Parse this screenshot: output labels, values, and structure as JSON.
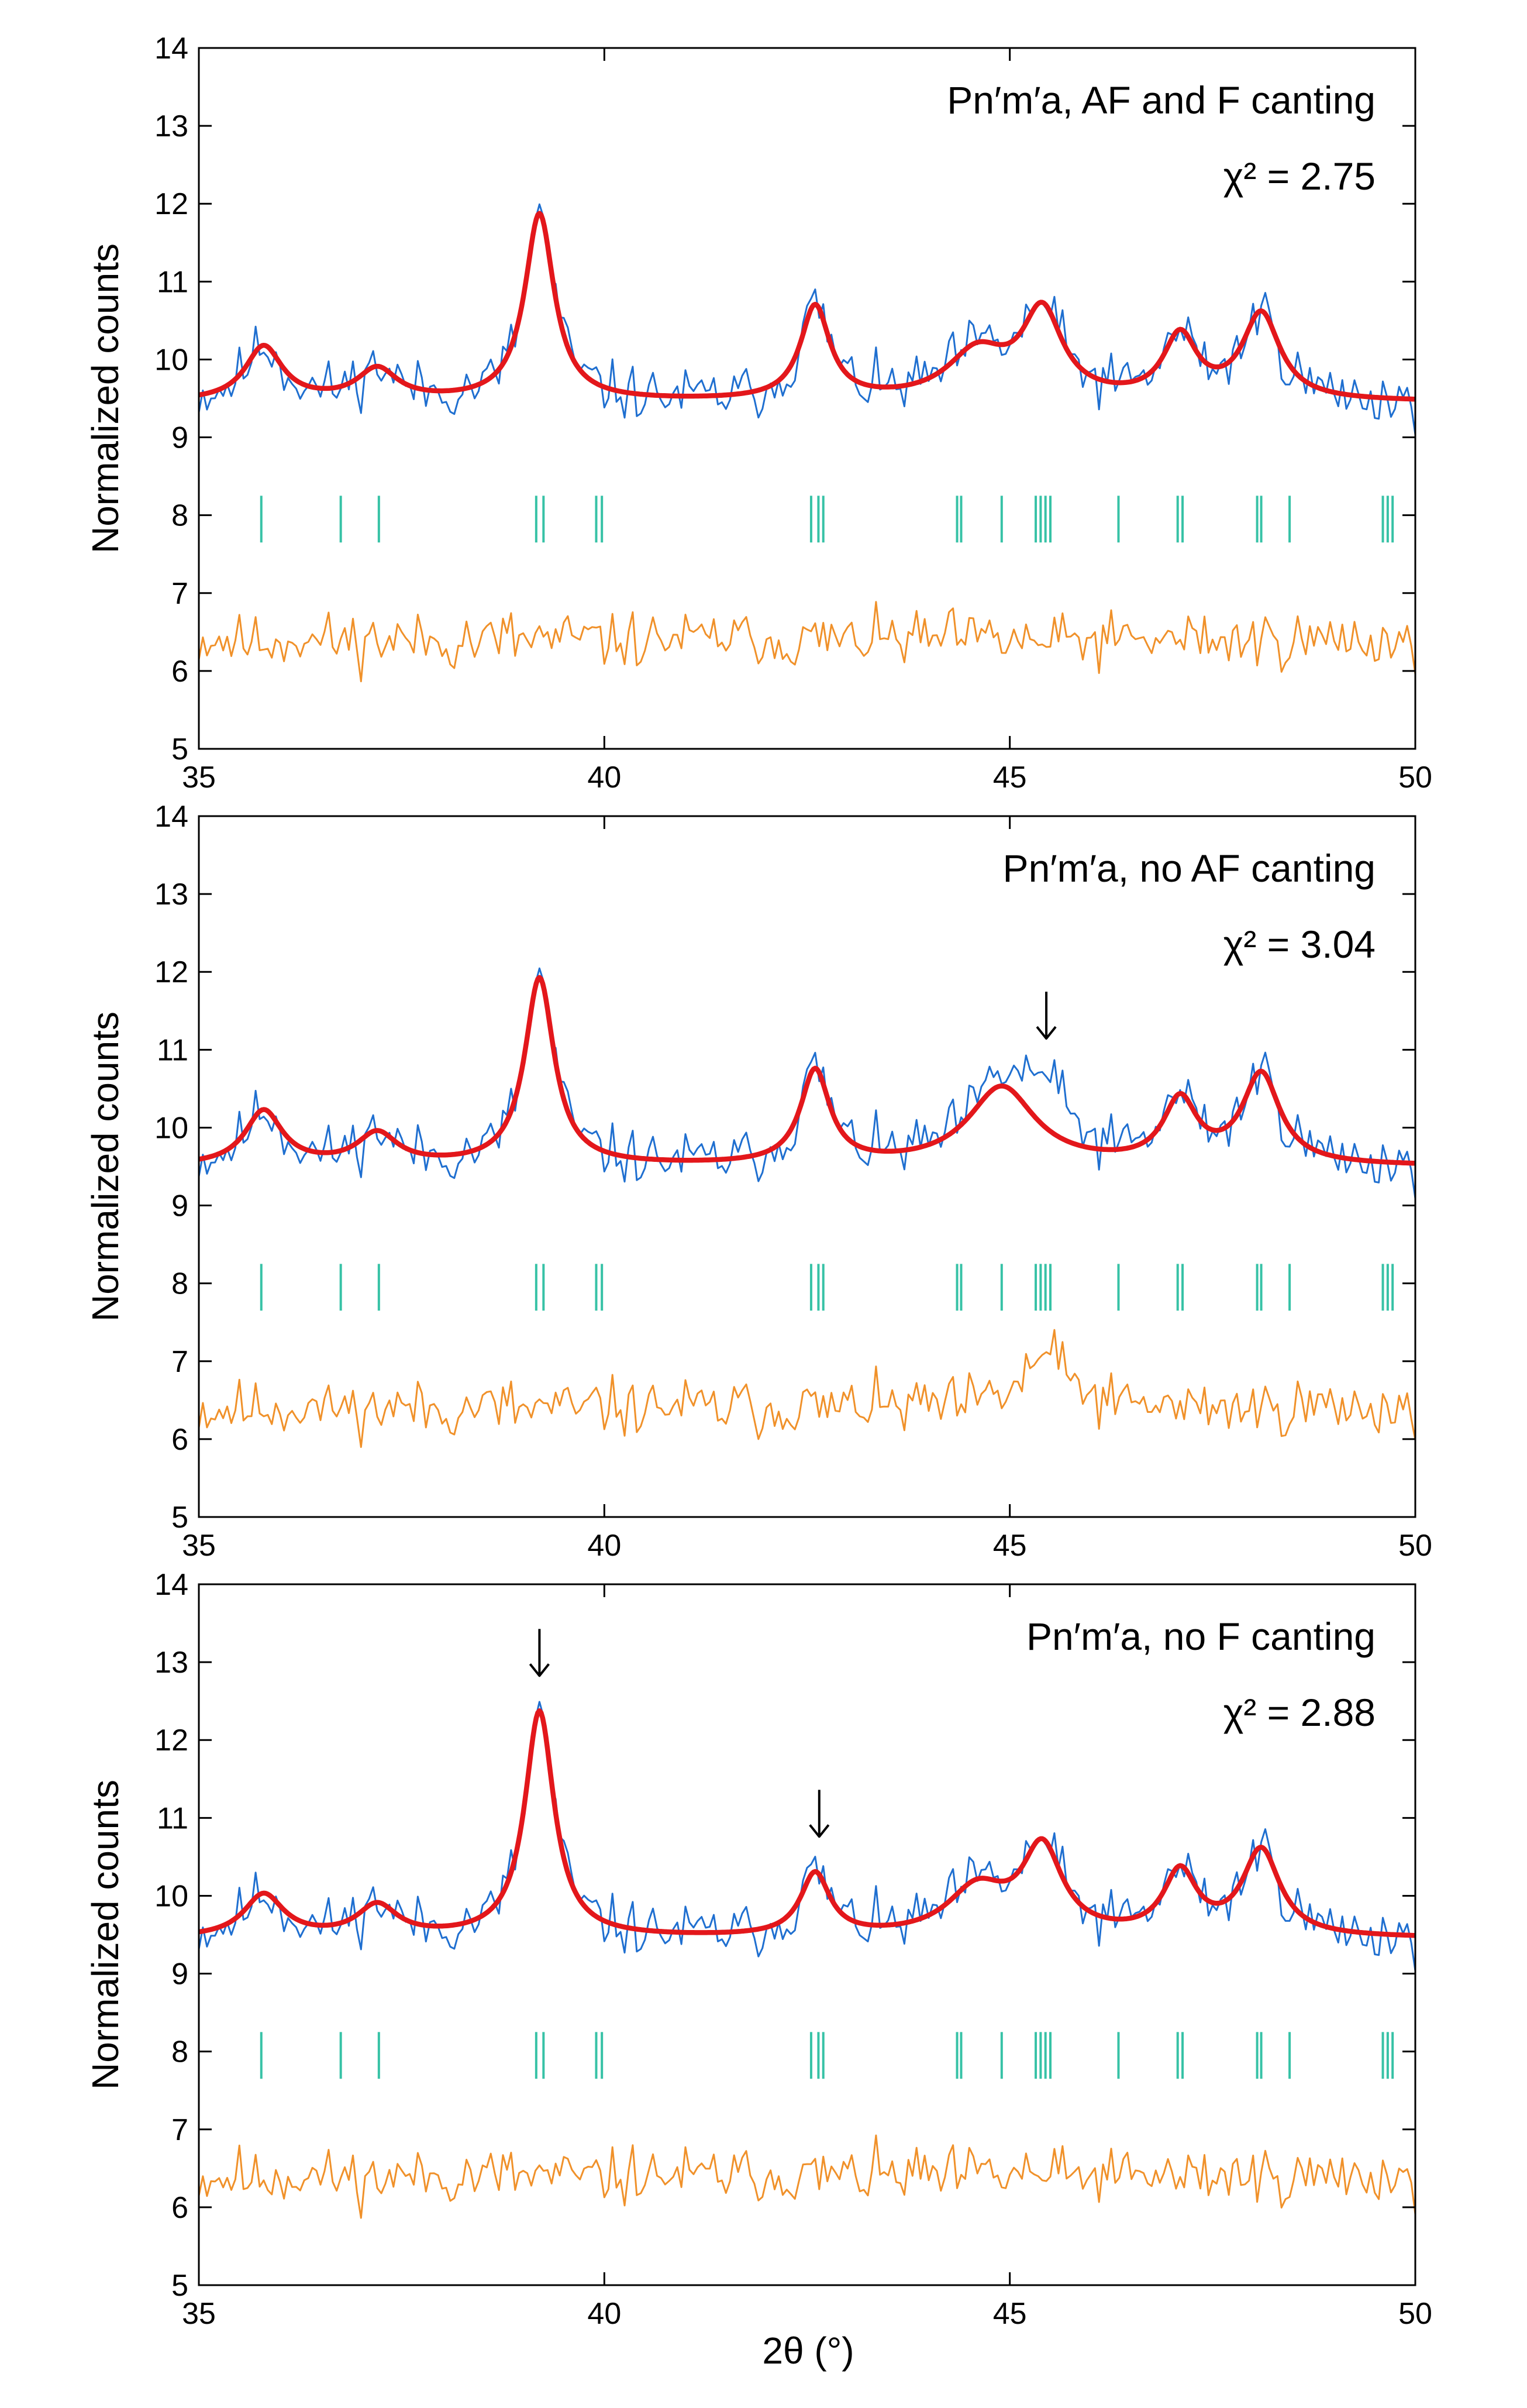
{
  "figure": {
    "x_axis_label": "2θ (°)",
    "y_axis_label": "Normalized counts"
  },
  "chart_data": [
    {
      "type": "line",
      "title": "Pn′m′a, AF and F canting",
      "chi_squared_label": "χ² = 2.75",
      "xlabel": "2θ (°)",
      "ylabel": "Normalized counts",
      "xlim": [
        35,
        50
      ],
      "ylim": [
        5,
        14
      ],
      "x_ticks": [
        "35",
        "40",
        "45",
        "50"
      ],
      "y_ticks": [
        "5",
        "6",
        "7",
        "8",
        "9",
        "10",
        "11",
        "12",
        "13",
        "14"
      ],
      "arrows_at": [],
      "peak_fit": {
        "baseline": 9.45,
        "peaks": [
          [
            35.8,
            0.7,
            0.28
          ],
          [
            37.2,
            0.4,
            0.3
          ],
          [
            39.2,
            2.4,
            0.22
          ],
          [
            42.6,
            1.2,
            0.22
          ],
          [
            44.6,
            0.6,
            0.45
          ],
          [
            45.4,
            1.1,
            0.3
          ],
          [
            47.1,
            0.8,
            0.25
          ],
          [
            48.1,
            1.1,
            0.28
          ]
        ]
      },
      "reflection_positions": [
        35.77,
        36.75,
        37.22,
        39.16,
        39.25,
        39.9,
        39.97,
        42.55,
        42.64,
        42.7,
        44.35,
        44.4,
        44.9,
        45.32,
        45.38,
        45.44,
        45.5,
        46.34,
        47.07,
        47.13,
        48.05,
        48.1,
        48.45,
        49.6,
        49.66,
        49.72
      ],
      "series": [
        {
          "name": "Observed",
          "color": "#1f6fd0",
          "noise": 0.22,
          "seed": 11
        },
        {
          "name": "Calculated",
          "color": "#e3171b"
        },
        {
          "name": "Bragg positions",
          "color": "#37c2a6",
          "y_range": [
            7.65,
            8.25
          ]
        },
        {
          "name": "Difference",
          "color": "#f0912a",
          "offset": 6.4,
          "seed": 23
        }
      ]
    },
    {
      "type": "line",
      "title": "Pn′m′a, no AF canting",
      "chi_squared_label": "χ² = 3.04",
      "xlabel": "2θ (°)",
      "ylabel": "Normalized counts",
      "xlim": [
        35,
        50
      ],
      "ylim": [
        5,
        14
      ],
      "x_ticks": [
        "35",
        "40",
        "45",
        "50"
      ],
      "y_ticks": [
        "5",
        "6",
        "7",
        "8",
        "9",
        "10",
        "11",
        "12",
        "13",
        "14"
      ],
      "arrows_at": [
        45.45
      ],
      "peak_fit": {
        "baseline": 9.5,
        "peaks": [
          [
            35.8,
            0.7,
            0.28
          ],
          [
            37.2,
            0.4,
            0.3
          ],
          [
            39.2,
            2.4,
            0.22
          ],
          [
            42.6,
            1.2,
            0.22
          ],
          [
            44.9,
            1.0,
            0.5
          ],
          [
            47.1,
            0.8,
            0.25
          ],
          [
            48.1,
            1.15,
            0.28
          ]
        ]
      },
      "observed_extra_peaks": [
        [
          45.45,
          0.7,
          0.3
        ]
      ],
      "reflection_positions": [
        35.77,
        36.75,
        37.22,
        39.16,
        39.25,
        39.9,
        39.97,
        42.55,
        42.64,
        42.7,
        44.35,
        44.4,
        44.9,
        45.32,
        45.38,
        45.44,
        45.5,
        46.34,
        47.07,
        47.13,
        48.05,
        48.1,
        48.45,
        49.6,
        49.66,
        49.72
      ],
      "series": [
        {
          "name": "Observed",
          "color": "#1f6fd0",
          "noise": 0.22,
          "seed": 11
        },
        {
          "name": "Calculated",
          "color": "#e3171b"
        },
        {
          "name": "Bragg positions",
          "color": "#37c2a6",
          "y_range": [
            7.65,
            8.25
          ]
        },
        {
          "name": "Difference",
          "color": "#f0912a",
          "offset": 6.4,
          "seed": 37
        }
      ]
    },
    {
      "type": "line",
      "title": "Pn′m′a, no F canting",
      "chi_squared_label": "χ² = 2.88",
      "xlabel": "2θ (°)",
      "ylabel": "Normalized counts",
      "xlim": [
        35,
        50
      ],
      "ylim": [
        5,
        14
      ],
      "x_ticks": [
        "35",
        "40",
        "45",
        "50"
      ],
      "y_ticks": [
        "5",
        "6",
        "7",
        "8",
        "9",
        "10",
        "11",
        "12",
        "13",
        "14"
      ],
      "arrows_at": [
        39.2,
        42.65
      ],
      "peak_fit": {
        "baseline": 9.45,
        "peaks": [
          [
            35.8,
            0.55,
            0.3
          ],
          [
            37.2,
            0.4,
            0.3
          ],
          [
            39.2,
            2.9,
            0.22
          ],
          [
            42.6,
            0.8,
            0.22
          ],
          [
            44.6,
            0.6,
            0.45
          ],
          [
            45.4,
            1.1,
            0.3
          ],
          [
            47.1,
            0.8,
            0.25
          ],
          [
            48.1,
            1.1,
            0.28
          ]
        ]
      },
      "reflection_positions": [
        35.77,
        36.75,
        37.22,
        39.16,
        39.25,
        39.9,
        39.97,
        42.55,
        42.64,
        42.7,
        44.35,
        44.4,
        44.9,
        45.32,
        45.38,
        45.44,
        45.5,
        46.34,
        47.07,
        47.13,
        48.05,
        48.1,
        48.45,
        49.6,
        49.66,
        49.72
      ],
      "series": [
        {
          "name": "Observed",
          "color": "#1f6fd0",
          "noise": 0.22,
          "seed": 11
        },
        {
          "name": "Calculated",
          "color": "#e3171b"
        },
        {
          "name": "Bragg positions",
          "color": "#37c2a6",
          "y_range": [
            7.65,
            8.25
          ]
        },
        {
          "name": "Difference",
          "color": "#f0912a",
          "offset": 6.4,
          "seed": 53
        }
      ]
    }
  ]
}
